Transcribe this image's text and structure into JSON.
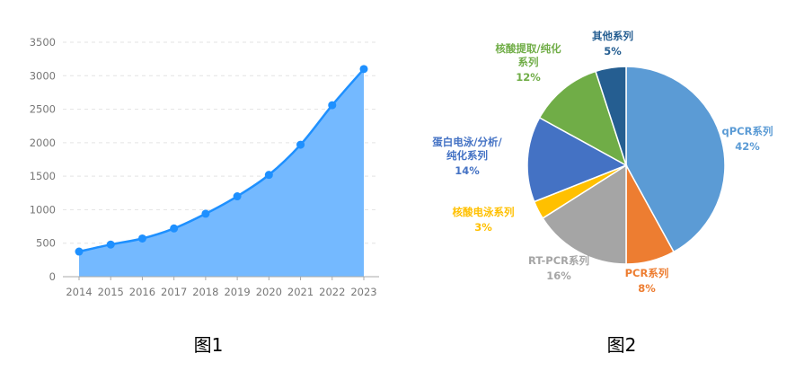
{
  "chart_data": [
    {
      "type": "area",
      "title": "",
      "xlabel": "",
      "ylabel": "",
      "x": [
        "2014",
        "2015",
        "2016",
        "2017",
        "2018",
        "2019",
        "2020",
        "2021",
        "2022",
        "2023"
      ],
      "values": [
        375,
        480,
        570,
        720,
        940,
        1200,
        1520,
        1970,
        2560,
        3100
      ],
      "ylim": [
        0,
        3500
      ],
      "yticks": [
        "0",
        "500",
        "1000",
        "1500",
        "2000",
        "2500",
        "3000",
        "3500"
      ],
      "grid": "horizontal dashed",
      "color": "#1E90FF",
      "fill": "#74B9FF",
      "caption": "图1"
    },
    {
      "type": "pie",
      "title": "",
      "slices": [
        {
          "label": [
            "qPCR系列"
          ],
          "value": 42,
          "pct": "42%",
          "color": "#5B9BD5"
        },
        {
          "label": [
            "PCR系列"
          ],
          "value": 8,
          "pct": "8%",
          "color": "#ED7D31"
        },
        {
          "label": [
            "RT-PCR系列"
          ],
          "value": 16,
          "pct": "16%",
          "color": "#A5A5A5"
        },
        {
          "label": [
            "核酸电泳系列"
          ],
          "value": 3,
          "pct": "3%",
          "color": "#FFC000"
        },
        {
          "label": [
            "蛋白电泳/分析/",
            "纯化系列"
          ],
          "value": 14,
          "pct": "14%",
          "color": "#4472C4"
        },
        {
          "label": [
            "核酸提取/纯化",
            "系列"
          ],
          "value": 12,
          "pct": "12%",
          "color": "#70AD47"
        },
        {
          "label": [
            "其他系列"
          ],
          "value": 5,
          "pct": "5%",
          "color": "#255E91"
        }
      ],
      "caption": "图2"
    }
  ]
}
